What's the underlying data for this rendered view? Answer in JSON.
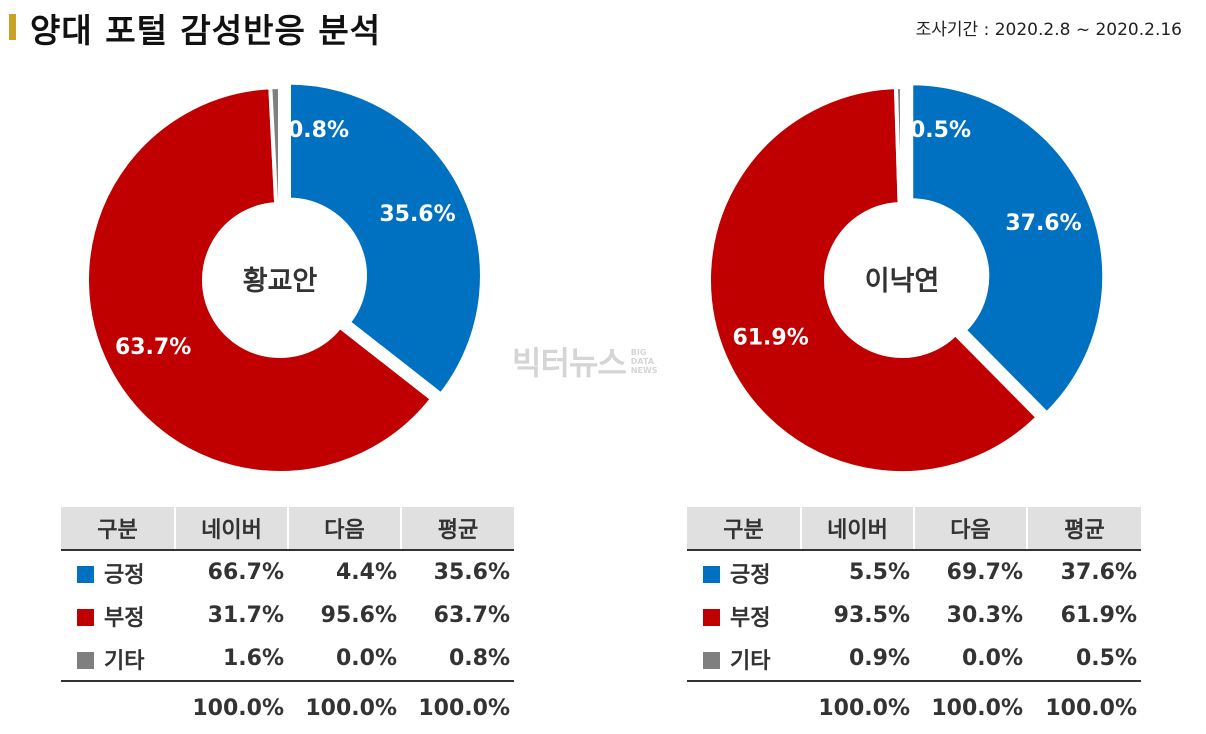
{
  "header": {
    "title": "양대 포털 감성반응 분석",
    "period": "조사기간 : 2020.2.8 ~ 2020.2.16"
  },
  "watermark": {
    "main": "빅터뉴스",
    "sub": [
      "BIG",
      "DATA",
      "NEWS"
    ]
  },
  "colors": {
    "positive": "#0070c0",
    "negative": "#c00000",
    "other": "#7f7f7f"
  },
  "chart_data": [
    {
      "type": "pie",
      "center_label": "황교안",
      "categories": [
        "긍정",
        "부정",
        "기타"
      ],
      "values": [
        35.6,
        63.7,
        0.8
      ],
      "labels": [
        "35.6%",
        "63.7%",
        "0.8%"
      ]
    },
    {
      "type": "pie",
      "center_label": "이낙연",
      "categories": [
        "긍정",
        "부정",
        "기타"
      ],
      "values": [
        37.6,
        61.9,
        0.5
      ],
      "labels": [
        "37.6%",
        "61.9%",
        "0.5%"
      ]
    },
    {
      "type": "table",
      "columns": [
        "구분",
        "네이버",
        "다음",
        "평균"
      ],
      "rows": [
        [
          "긍정",
          "66.7%",
          "4.4%",
          "35.6%"
        ],
        [
          "부정",
          "31.7%",
          "95.6%",
          "63.7%"
        ],
        [
          "기타",
          "1.6%",
          "0.0%",
          "0.8%"
        ]
      ],
      "totals": [
        "100.0%",
        "100.0%",
        "100.0%"
      ]
    },
    {
      "type": "table",
      "columns": [
        "구분",
        "네이버",
        "다음",
        "평균"
      ],
      "rows": [
        [
          "긍정",
          "5.5%",
          "69.7%",
          "37.6%"
        ],
        [
          "부정",
          "93.5%",
          "30.3%",
          "61.9%"
        ],
        [
          "기타",
          "0.9%",
          "0.0%",
          "0.5%"
        ]
      ],
      "totals": [
        "100.0%",
        "100.0%",
        "100.0%"
      ]
    }
  ]
}
